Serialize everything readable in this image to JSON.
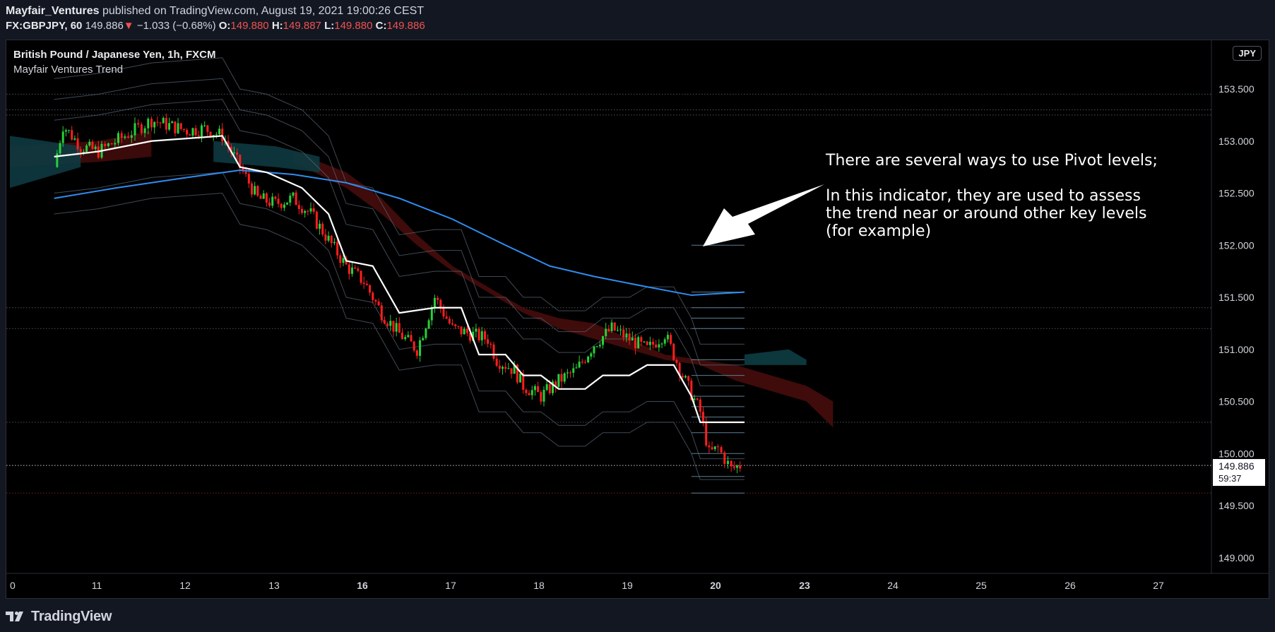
{
  "header": {
    "author": "Mayfair_Ventures",
    "published_text": "published on TradingView.com, August 19, 2021 19:00:26 CEST",
    "symbol": "FX:GBPJPY, 60",
    "last": "149.886",
    "change_arrow": "▼",
    "change": "−1.033 (−0.68%)",
    "open_label": "O:",
    "open": "149.880",
    "high_label": "H:",
    "high": "149.887",
    "low_label": "L:",
    "low": "149.880",
    "close_label": "C:",
    "close": "149.886"
  },
  "legend": {
    "title": "British Pound / Japanese Yen, 1h, FXCM",
    "indicator": "Mayfair Ventures Trend"
  },
  "currency_badge": "JPY",
  "annotation": {
    "paragraph1": "There are several ways to use Pivot levels;",
    "paragraph2": "In this indicator, they are used to assess the trend near or around other key levels (for example)"
  },
  "footer": {
    "brand": "TradingView",
    "logo_icon": "tradingview-logo-icon"
  },
  "chart_data": {
    "type": "candlestick",
    "title": "British Pound / Japanese Yen, 1h, FXCM",
    "price_ticks": [
      "153.500",
      "153.000",
      "152.500",
      "152.000",
      "151.500",
      "151.000",
      "150.500",
      "150.000",
      "149.500",
      "149.000"
    ],
    "price_tick_values": [
      153.5,
      153.0,
      152.5,
      152.0,
      151.5,
      151.0,
      150.5,
      150.0,
      149.5,
      149.0
    ],
    "ylim": [
      148.6,
      154.0
    ],
    "x_ticks": [
      "0",
      "11",
      "12",
      "13",
      "16",
      "17",
      "18",
      "19",
      "20",
      "23",
      "24",
      "25",
      "26",
      "27"
    ],
    "x_bold_ticks": [
      "16",
      "20",
      "23"
    ],
    "last_price_label": "149.886",
    "countdown_label": "59:37",
    "last_price": 149.886,
    "close_path": [
      [
        10.5,
        152.75
      ],
      [
        10.6,
        153.15
      ],
      [
        10.8,
        152.95
      ],
      [
        11.0,
        152.9
      ],
      [
        11.3,
        153.05
      ],
      [
        11.6,
        153.2
      ],
      [
        11.8,
        153.15
      ],
      [
        12.0,
        153.1
      ],
      [
        12.2,
        153.12
      ],
      [
        12.4,
        153.05
      ],
      [
        12.6,
        152.75
      ],
      [
        12.8,
        152.45
      ],
      [
        13.0,
        152.4
      ],
      [
        13.2,
        152.45
      ],
      [
        13.4,
        152.3
      ],
      [
        13.6,
        152.05
      ],
      [
        13.8,
        151.8
      ],
      [
        14.0,
        151.65
      ],
      [
        14.2,
        151.35
      ],
      [
        14.4,
        151.15
      ],
      [
        14.6,
        151.0
      ],
      [
        14.8,
        151.5
      ],
      [
        15.0,
        151.2
      ],
      [
        15.2,
        151.15
      ],
      [
        15.4,
        151.1
      ],
      [
        15.5,
        150.9
      ],
      [
        15.7,
        150.8
      ],
      [
        15.8,
        150.65
      ],
      [
        16.0,
        150.55
      ],
      [
        16.2,
        150.7
      ],
      [
        16.4,
        150.8
      ],
      [
        16.6,
        151.05
      ],
      [
        16.8,
        151.2
      ],
      [
        17.0,
        151.1
      ],
      [
        17.2,
        151.0
      ],
      [
        17.4,
        151.15
      ],
      [
        17.6,
        150.75
      ],
      [
        17.8,
        150.4
      ],
      [
        17.9,
        150.0
      ],
      [
        18.0,
        150.05
      ],
      [
        18.15,
        149.85
      ],
      [
        18.25,
        149.886
      ]
    ],
    "white_trend_line": [
      [
        10.5,
        152.85
      ],
      [
        11.0,
        152.9
      ],
      [
        11.6,
        153.0
      ],
      [
        12.4,
        153.05
      ],
      [
        12.6,
        152.75
      ],
      [
        12.9,
        152.7
      ],
      [
        13.3,
        152.55
      ],
      [
        13.6,
        152.3
      ],
      [
        13.8,
        151.85
      ],
      [
        14.1,
        151.8
      ],
      [
        14.4,
        151.35
      ],
      [
        14.8,
        151.4
      ],
      [
        15.1,
        151.4
      ],
      [
        15.3,
        150.95
      ],
      [
        15.6,
        150.95
      ],
      [
        15.8,
        150.75
      ],
      [
        16.0,
        150.75
      ],
      [
        16.2,
        150.62
      ],
      [
        16.5,
        150.62
      ],
      [
        16.7,
        150.75
      ],
      [
        17.0,
        150.75
      ],
      [
        17.2,
        150.85
      ],
      [
        17.5,
        150.85
      ],
      [
        17.7,
        150.55
      ],
      [
        17.8,
        150.3
      ],
      [
        18.3,
        150.3
      ]
    ],
    "blue_ma_line": [
      [
        10.5,
        152.45
      ],
      [
        11.2,
        152.55
      ],
      [
        12.0,
        152.65
      ],
      [
        12.6,
        152.72
      ],
      [
        13.2,
        152.68
      ],
      [
        13.8,
        152.6
      ],
      [
        14.4,
        152.45
      ],
      [
        15.0,
        152.25
      ],
      [
        15.6,
        152.0
      ],
      [
        16.1,
        151.8
      ],
      [
        16.6,
        151.7
      ],
      [
        17.2,
        151.6
      ],
      [
        17.7,
        151.52
      ],
      [
        18.3,
        151.55
      ]
    ],
    "horizontal_levels": [
      153.45,
      153.3,
      153.25,
      151.4,
      151.2,
      150.3,
      149.886,
      149.62
    ],
    "pivot_segments": [
      [
        17.7,
        152.0
      ],
      [
        17.7,
        151.55
      ],
      [
        17.7,
        151.4
      ],
      [
        17.7,
        151.3
      ],
      [
        17.7,
        151.2
      ],
      [
        17.7,
        150.9
      ],
      [
        17.7,
        150.75
      ],
      [
        17.7,
        150.55
      ],
      [
        17.7,
        150.45
      ],
      [
        17.7,
        150.35
      ],
      [
        17.7,
        150.2
      ],
      [
        17.7,
        150.0
      ],
      [
        17.7,
        149.78
      ],
      [
        17.7,
        149.62
      ]
    ]
  }
}
